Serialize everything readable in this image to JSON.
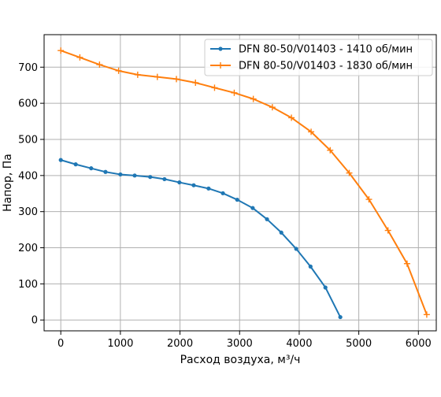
{
  "chart_data": {
    "type": "line",
    "xlabel": "Расход воздуха, м³/ч",
    "ylabel": "Напор, Па",
    "xlim": [
      -280,
      6300
    ],
    "ylim": [
      -30,
      790
    ],
    "xticks": [
      0,
      1000,
      2000,
      3000,
      4000,
      5000,
      6000
    ],
    "yticks": [
      0,
      100,
      200,
      300,
      400,
      500,
      600,
      700
    ],
    "grid": true,
    "legend_position": "top-right",
    "series": [
      {
        "name": "DFN 80-50/V01403 - 1410 об/мин",
        "color": "#1f77b4",
        "marker": "dot",
        "x": [
          0,
          250,
          510,
          750,
          1000,
          1240,
          1500,
          1740,
          1990,
          2230,
          2480,
          2720,
          2960,
          3220,
          3460,
          3700,
          3950,
          4190,
          4440,
          4690
        ],
        "y": [
          443,
          431,
          420,
          410,
          403,
          400,
          396,
          390,
          381,
          373,
          364,
          351,
          333,
          310,
          279,
          242,
          197,
          148,
          90,
          8
        ]
      },
      {
        "name": "DFN 80-50/V01403 - 1830 об/мин",
        "color": "#ff7f0e",
        "marker": "plus",
        "x": [
          0,
          320,
          650,
          970,
          1290,
          1620,
          1940,
          2260,
          2580,
          2910,
          3230,
          3550,
          3870,
          4200,
          4520,
          4840,
          5170,
          5490,
          5810,
          6140
        ],
        "y": [
          746,
          727,
          707,
          690,
          679,
          673,
          667,
          657,
          643,
          629,
          612,
          589,
          560,
          521,
          470,
          407,
          334,
          248,
          156,
          15
        ]
      }
    ]
  }
}
